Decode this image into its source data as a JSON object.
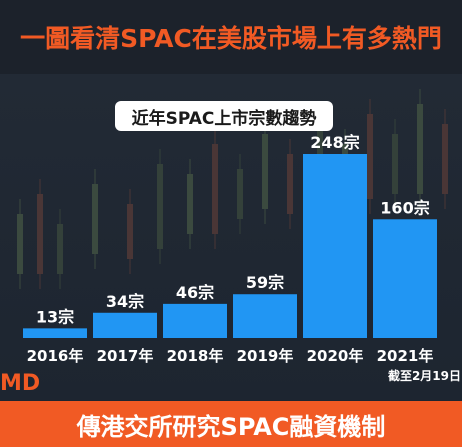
{
  "header": {
    "title": "一圖看清SPAC在美股市場上有多熱門"
  },
  "brand": {
    "logo_text": "MD"
  },
  "footer": {
    "caption": "傳港交所研究SPAC融資機制"
  },
  "colors": {
    "accent": "#f15a24",
    "bar": "#2196f3",
    "background": "#1a2029"
  },
  "chart_data": {
    "type": "bar",
    "title": "近年SPAC上市宗數趨勢",
    "categories": [
      "2016年",
      "2017年",
      "2018年",
      "2019年",
      "2020年",
      "2021年"
    ],
    "values": [
      13,
      34,
      46,
      59,
      248,
      160
    ],
    "value_labels": [
      "13宗",
      "34宗",
      "46宗",
      "59宗",
      "248宗",
      "160宗"
    ],
    "annotation": "截至2月19日",
    "ylim": [
      0,
      248
    ],
    "grid": false,
    "legend": "none"
  }
}
